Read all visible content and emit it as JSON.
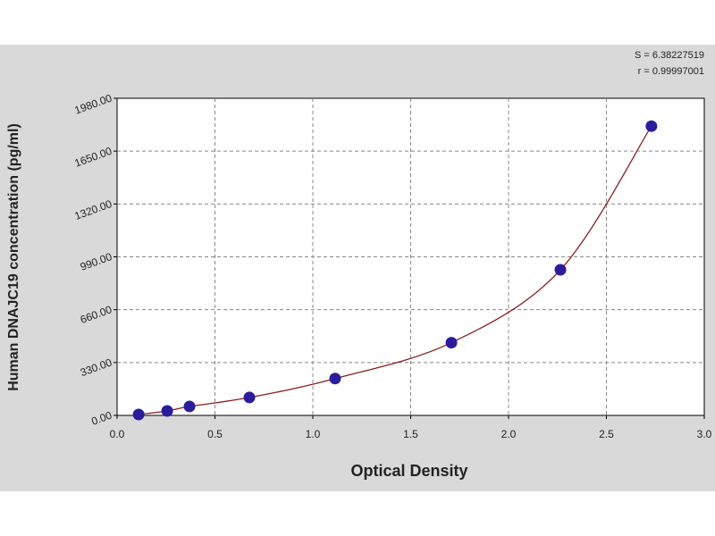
{
  "chart_data": {
    "type": "scatter",
    "x_label": "Optical Density",
    "y_label": "Human DNAJC19 concentration (pg/ml)",
    "annotations": [
      "S = 6.38227519",
      "r = 0.99997001"
    ],
    "x": [
      0.11,
      0.256,
      0.37,
      0.676,
      1.114,
      1.708,
      2.265,
      2.73
    ],
    "values": [
      5.6,
      28,
      56,
      112,
      230,
      454,
      909,
      1806
    ],
    "color": "#2b1c9c",
    "line_color": "#8b1f1f",
    "xlim": [
      0,
      3
    ],
    "xticks": [
      {
        "value": 0,
        "label": "0.0"
      },
      0.5,
      {
        "value": 1,
        "label": "1.0"
      },
      1.5,
      {
        "value": 2,
        "label": "2.0"
      },
      2.5,
      {
        "value": 3,
        "label": "3.0"
      }
    ],
    "ylim": [
      0,
      1980
    ],
    "yticks": [
      {
        "value": 0,
        "label": "0.00"
      },
      {
        "value": 330,
        "label": "330.00"
      },
      {
        "value": 660,
        "label": "660.00"
      },
      {
        "value": 990,
        "label": "990.00"
      },
      {
        "value": 1320,
        "label": "1320.00"
      },
      {
        "value": 1650,
        "label": "1650.00"
      },
      {
        "value": 1980,
        "label": "1980.00"
      }
    ],
    "grid": true
  }
}
